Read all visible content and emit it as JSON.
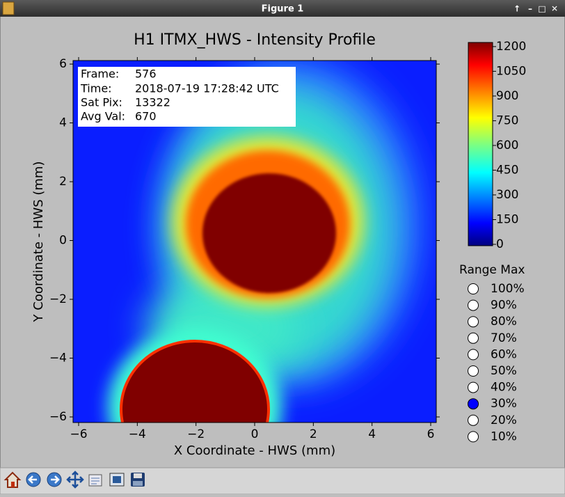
{
  "window": {
    "title": "Figure 1",
    "controls": [
      "↑",
      "–",
      "□",
      "✕"
    ]
  },
  "chart_data": {
    "type": "heatmap",
    "title": "H1 ITMX_HWS - Intensity Profile",
    "x_label": "X Coordinate - HWS (mm)",
    "y_label": "Y Coordinate - HWS (mm)",
    "xlim": [
      -6.19,
      6.19
    ],
    "ylim": [
      -6.19,
      6.12
    ],
    "xticks": [
      {
        "value": -6,
        "label": "−6"
      },
      {
        "value": -4,
        "label": "−4"
      },
      {
        "value": -2,
        "label": "−2"
      },
      0,
      2,
      4,
      6
    ],
    "yticks": [
      {
        "value": -6,
        "label": "−6"
      },
      {
        "value": -4,
        "label": "−4"
      },
      {
        "value": -2,
        "label": "−2"
      },
      0,
      2,
      4,
      6
    ],
    "colormap": "jet",
    "clim": [
      0,
      1225
    ],
    "cticks": [
      0,
      150,
      300,
      450,
      600,
      750,
      900,
      1050,
      1200
    ],
    "annotation": [
      [
        "Frame:",
        "576"
      ],
      [
        "Time:",
        "2018-07-19 17:28:42 UTC"
      ],
      [
        "Sat Pix:",
        "13322"
      ],
      [
        "Avg Val:",
        "670"
      ]
    ]
  },
  "radio": {
    "title": "Range Max",
    "options": [
      "100%",
      "90%",
      "80%",
      "70%",
      "60%",
      "50%",
      "40%",
      "30%",
      "20%",
      "10%"
    ],
    "selected_index": 7
  }
}
